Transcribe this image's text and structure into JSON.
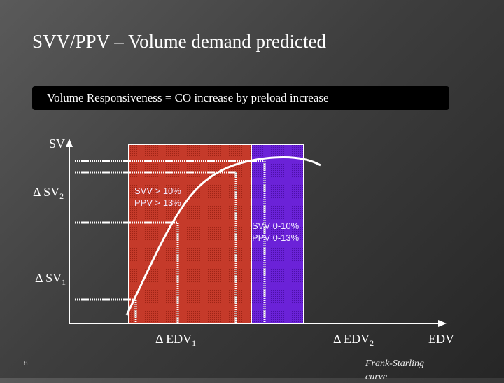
{
  "slide": {
    "title": "SVV/PPV – Volume demand predicted",
    "banner": "Volume Responsiveness = CO increase by preload increase",
    "page_number": "8"
  },
  "axes": {
    "y_label": "SV",
    "x_label": "EDV",
    "delta_sv2": "Δ SV",
    "delta_sv2_sub": "2",
    "delta_sv1": "Δ SV",
    "delta_sv1_sub": "1",
    "delta_edv1": "Δ EDV",
    "delta_edv1_sub": "1",
    "delta_edv2": "Δ EDV",
    "delta_edv2_sub": "2"
  },
  "zones": {
    "responsive_line1": "SVV > 10%",
    "responsive_line2": "PPV > 13%",
    "nonresponsive_line1": "SVV 0-10%",
    "nonresponsive_line2": "PPV 0-13%"
  },
  "curve": {
    "name_line1": "Frank-Starling",
    "name_line2": "curve"
  },
  "colors": {
    "responsive_zone": "#c0392b",
    "nonresponsive_zone": "#6a1fd6",
    "curve": "#ffffff"
  }
}
